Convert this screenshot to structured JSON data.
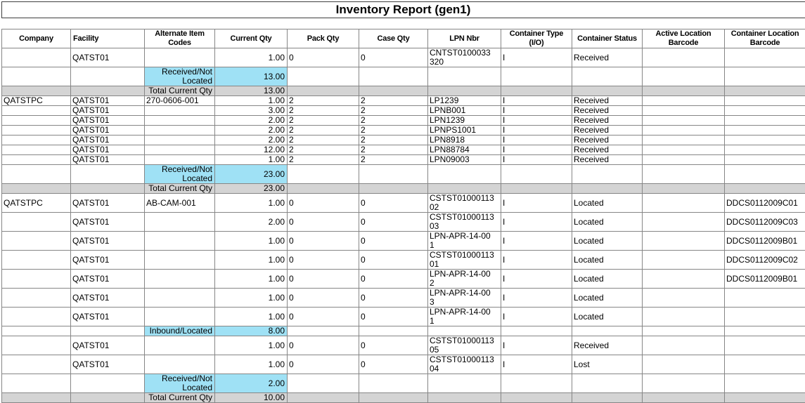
{
  "title": "Inventory Report (gen1)",
  "colors": {
    "subtotal_highlight": "#9fe1f5",
    "total_row_gray": "#d4d4d4",
    "grid_line": "#868686"
  },
  "columns": [
    {
      "key": "company",
      "label": "Company"
    },
    {
      "key": "facility",
      "label": "Facility"
    },
    {
      "key": "alt",
      "label": "Alternate Item Codes"
    },
    {
      "key": "current_qty",
      "label": "Current Qty"
    },
    {
      "key": "pack_qty",
      "label": "Pack Qty"
    },
    {
      "key": "case_qty",
      "label": "Case Qty"
    },
    {
      "key": "lpn",
      "label": "LPN Nbr"
    },
    {
      "key": "container_type",
      "label": "Container Type (I/O)"
    },
    {
      "key": "container_status",
      "label": "Container Status"
    },
    {
      "key": "active_loc",
      "label": "Active Location Barcode"
    },
    {
      "key": "container_loc",
      "label": "Container Location Barcode"
    }
  ],
  "rows": [
    {
      "type": "data",
      "tall": true,
      "company": "",
      "facility": "QATST01",
      "alt": "",
      "current_qty": "1.00",
      "pack_qty": "0",
      "case_qty": "0",
      "lpn": "CNTST0100033320",
      "container_type": "I",
      "container_status": "Received",
      "active_loc": "",
      "container_loc": ""
    },
    {
      "type": "subtotal",
      "tall": true,
      "label": "Received/Not Located",
      "qty": "13.00"
    },
    {
      "type": "total",
      "label": "Total Current Qty",
      "qty": "13.00"
    },
    {
      "type": "data",
      "tall": false,
      "company": "QATSTPC",
      "facility": "QATST01",
      "alt": "270-0606-001",
      "current_qty": "1.00",
      "pack_qty": "2",
      "case_qty": "2",
      "lpn": "LP1239",
      "container_type": "I",
      "container_status": "Received",
      "active_loc": "",
      "container_loc": ""
    },
    {
      "type": "data",
      "tall": false,
      "company": "",
      "facility": "QATST01",
      "alt": "",
      "current_qty": "3.00",
      "pack_qty": "2",
      "case_qty": "2",
      "lpn": "LPNB001",
      "container_type": "I",
      "container_status": "Received",
      "active_loc": "",
      "container_loc": ""
    },
    {
      "type": "data",
      "tall": false,
      "company": "",
      "facility": "QATST01",
      "alt": "",
      "current_qty": "2.00",
      "pack_qty": "2",
      "case_qty": "2",
      "lpn": "LPN1239",
      "container_type": "I",
      "container_status": "Received",
      "active_loc": "",
      "container_loc": ""
    },
    {
      "type": "data",
      "tall": false,
      "company": "",
      "facility": "QATST01",
      "alt": "",
      "current_qty": "2.00",
      "pack_qty": "2",
      "case_qty": "2",
      "lpn": "LPNPS1001",
      "container_type": "I",
      "container_status": "Received",
      "active_loc": "",
      "container_loc": ""
    },
    {
      "type": "data",
      "tall": false,
      "company": "",
      "facility": "QATST01",
      "alt": "",
      "current_qty": "2.00",
      "pack_qty": "2",
      "case_qty": "2",
      "lpn": "LPN8918",
      "container_type": "I",
      "container_status": "Received",
      "active_loc": "",
      "container_loc": ""
    },
    {
      "type": "data",
      "tall": false,
      "company": "",
      "facility": "QATST01",
      "alt": "",
      "current_qty": "12.00",
      "pack_qty": "2",
      "case_qty": "2",
      "lpn": "LPN88784",
      "container_type": "I",
      "container_status": "Received",
      "active_loc": "",
      "container_loc": ""
    },
    {
      "type": "data",
      "tall": false,
      "company": "",
      "facility": "QATST01",
      "alt": "",
      "current_qty": "1.00",
      "pack_qty": "2",
      "case_qty": "2",
      "lpn": "LPN09003",
      "container_type": "I",
      "container_status": "Received",
      "active_loc": "",
      "container_loc": ""
    },
    {
      "type": "subtotal",
      "tall": true,
      "label": "Received/Not Located",
      "qty": "23.00"
    },
    {
      "type": "total",
      "label": "Total Current Qty",
      "qty": "23.00"
    },
    {
      "type": "data",
      "tall": true,
      "company": "QATSTPC",
      "facility": "QATST01",
      "alt": "AB-CAM-001",
      "current_qty": "1.00",
      "pack_qty": "0",
      "case_qty": "0",
      "lpn": "CSTST0100011302",
      "container_type": "I",
      "container_status": "Located",
      "active_loc": "",
      "container_loc": "DDCS0112009C01"
    },
    {
      "type": "data",
      "tall": true,
      "company": "",
      "facility": "QATST01",
      "alt": "",
      "current_qty": "2.00",
      "pack_qty": "0",
      "case_qty": "0",
      "lpn": "CSTST0100011303",
      "container_type": "I",
      "container_status": "Located",
      "active_loc": "",
      "container_loc": "DDCS0112009C03"
    },
    {
      "type": "data",
      "tall": false,
      "company": "",
      "facility": "QATST01",
      "alt": "",
      "current_qty": "1.00",
      "pack_qty": "0",
      "case_qty": "0",
      "lpn": "LPN-APR-14-001",
      "container_type": "I",
      "container_status": "Located",
      "active_loc": "",
      "container_loc": "DDCS0112009B01"
    },
    {
      "type": "data",
      "tall": true,
      "company": "",
      "facility": "QATST01",
      "alt": "",
      "current_qty": "1.00",
      "pack_qty": "0",
      "case_qty": "0",
      "lpn": "CSTST0100011301",
      "container_type": "I",
      "container_status": "Located",
      "active_loc": "",
      "container_loc": "DDCS0112009C02"
    },
    {
      "type": "data",
      "tall": false,
      "company": "",
      "facility": "QATST01",
      "alt": "",
      "current_qty": "1.00",
      "pack_qty": "0",
      "case_qty": "0",
      "lpn": "LPN-APR-14-002",
      "container_type": "I",
      "container_status": "Located",
      "active_loc": "",
      "container_loc": "DDCS0112009B01"
    },
    {
      "type": "data",
      "tall": false,
      "company": "",
      "facility": "QATST01",
      "alt": "",
      "current_qty": "1.00",
      "pack_qty": "0",
      "case_qty": "0",
      "lpn": "LPN-APR-14-003",
      "container_type": "I",
      "container_status": "Located",
      "active_loc": "",
      "container_loc": ""
    },
    {
      "type": "data",
      "tall": false,
      "company": "",
      "facility": "QATST01",
      "alt": "",
      "current_qty": "1.00",
      "pack_qty": "0",
      "case_qty": "0",
      "lpn": "LPN-APR-14-001",
      "container_type": "I",
      "container_status": "Located",
      "active_loc": "",
      "container_loc": ""
    },
    {
      "type": "subtotal",
      "tall": false,
      "label": "Inbound/Located",
      "qty": "8.00"
    },
    {
      "type": "data",
      "tall": true,
      "company": "",
      "facility": "QATST01",
      "alt": "",
      "current_qty": "1.00",
      "pack_qty": "0",
      "case_qty": "0",
      "lpn": "CSTST0100011305",
      "container_type": "I",
      "container_status": "Received",
      "active_loc": "",
      "container_loc": ""
    },
    {
      "type": "data",
      "tall": true,
      "company": "",
      "facility": "QATST01",
      "alt": "",
      "current_qty": "1.00",
      "pack_qty": "0",
      "case_qty": "0",
      "lpn": "CSTST0100011304",
      "container_type": "I",
      "container_status": "Lost",
      "active_loc": "",
      "container_loc": ""
    },
    {
      "type": "subtotal",
      "tall": true,
      "label": "Received/Not Located",
      "qty": "2.00"
    },
    {
      "type": "total",
      "label": "Total Current Qty",
      "qty": "10.00"
    }
  ]
}
